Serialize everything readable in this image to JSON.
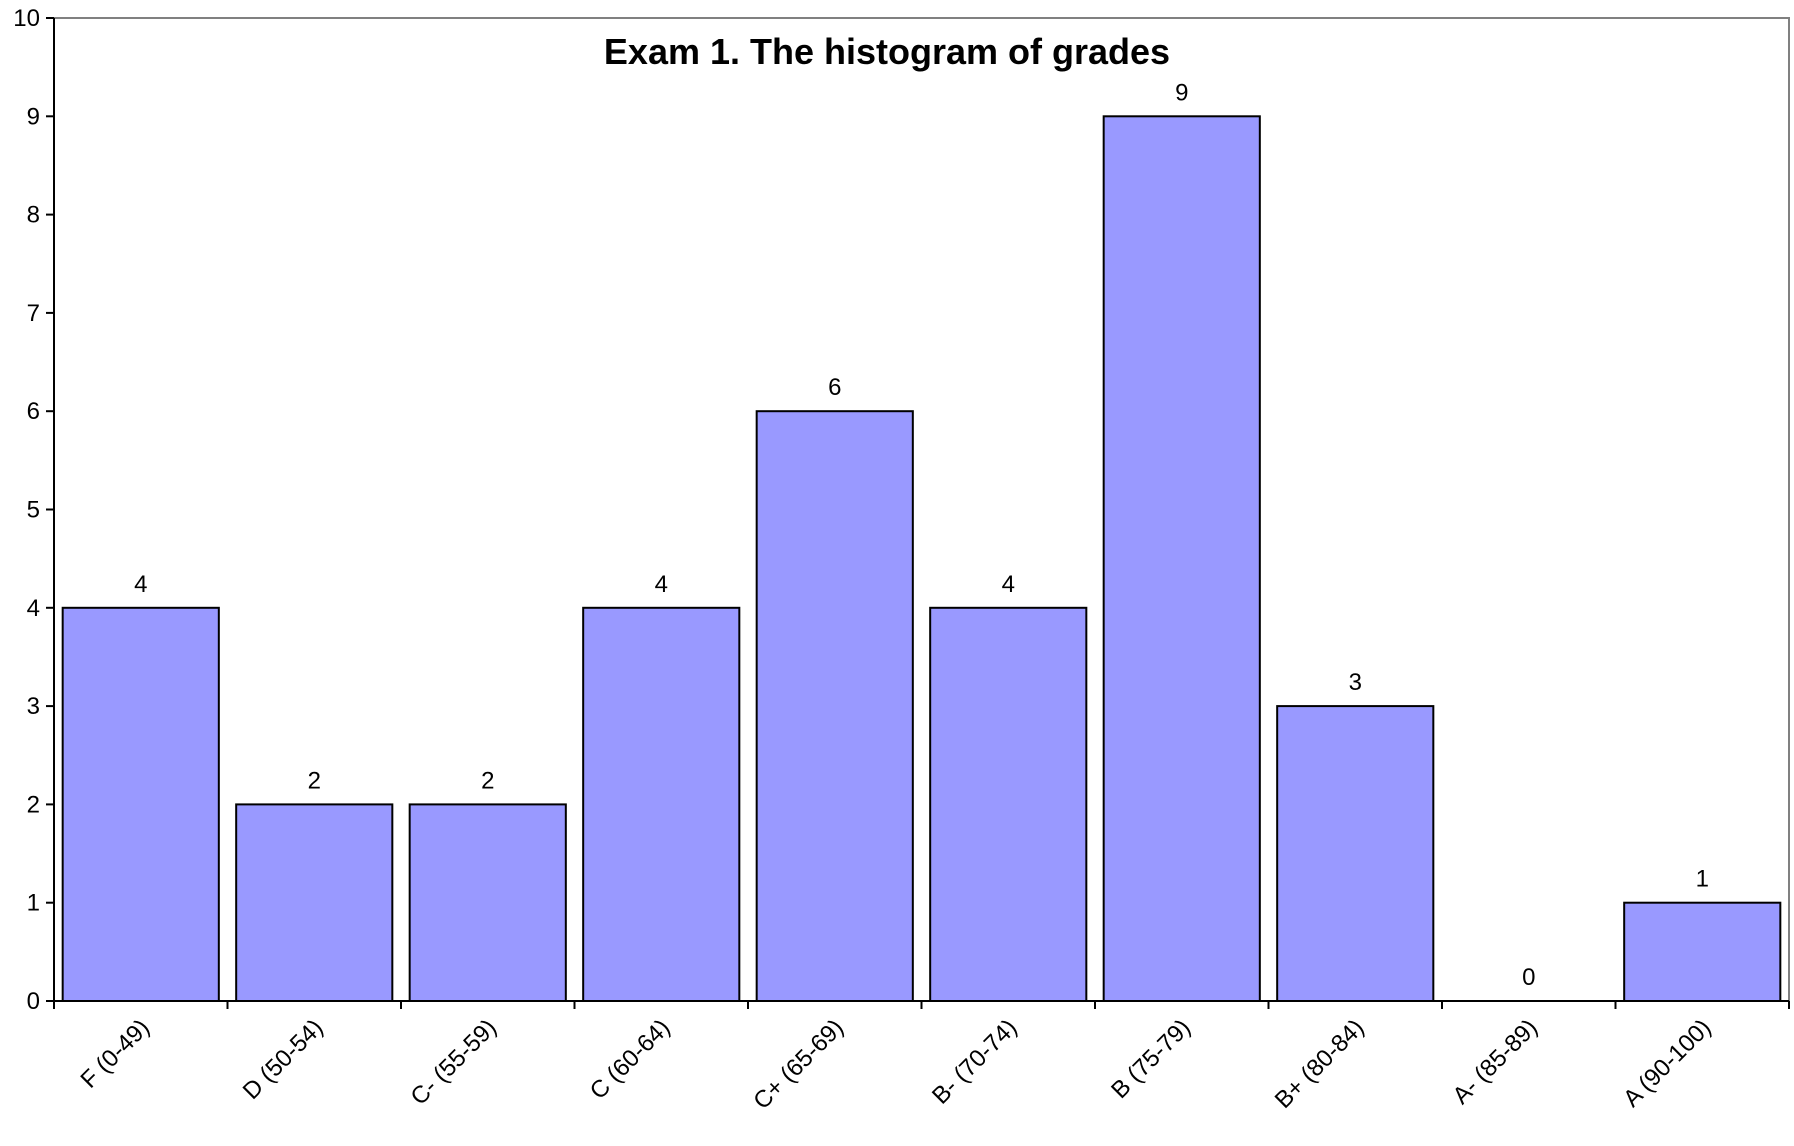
{
  "chart_data": {
    "type": "bar",
    "title": "Exam  1. The histogram of grades",
    "xlabel": "",
    "ylabel": "",
    "ylim": [
      0,
      10
    ],
    "yticks": [
      "0",
      "1",
      "2",
      "3",
      "4",
      "5",
      "6",
      "7",
      "8",
      "9",
      "10"
    ],
    "categories": [
      "F (0-49)",
      "D (50-54)",
      "C- (55-59)",
      "C (60-64)",
      "C+ (65-69)",
      "B- (70-74)",
      "B (75-79)",
      "B+ (80-84)",
      "A- (85-89)",
      "A (90-100)"
    ],
    "values": [
      4,
      2,
      2,
      4,
      6,
      4,
      9,
      3,
      0,
      1
    ],
    "data_labels": [
      "4",
      "2",
      "2",
      "4",
      "6",
      "4",
      "9",
      "3",
      "0",
      "1"
    ],
    "grid": false,
    "legend": "none",
    "colors": {
      "bar_fill": "#9999ff",
      "bar_stroke": "#000000",
      "axis": "#000000",
      "frame": "#808080"
    }
  }
}
